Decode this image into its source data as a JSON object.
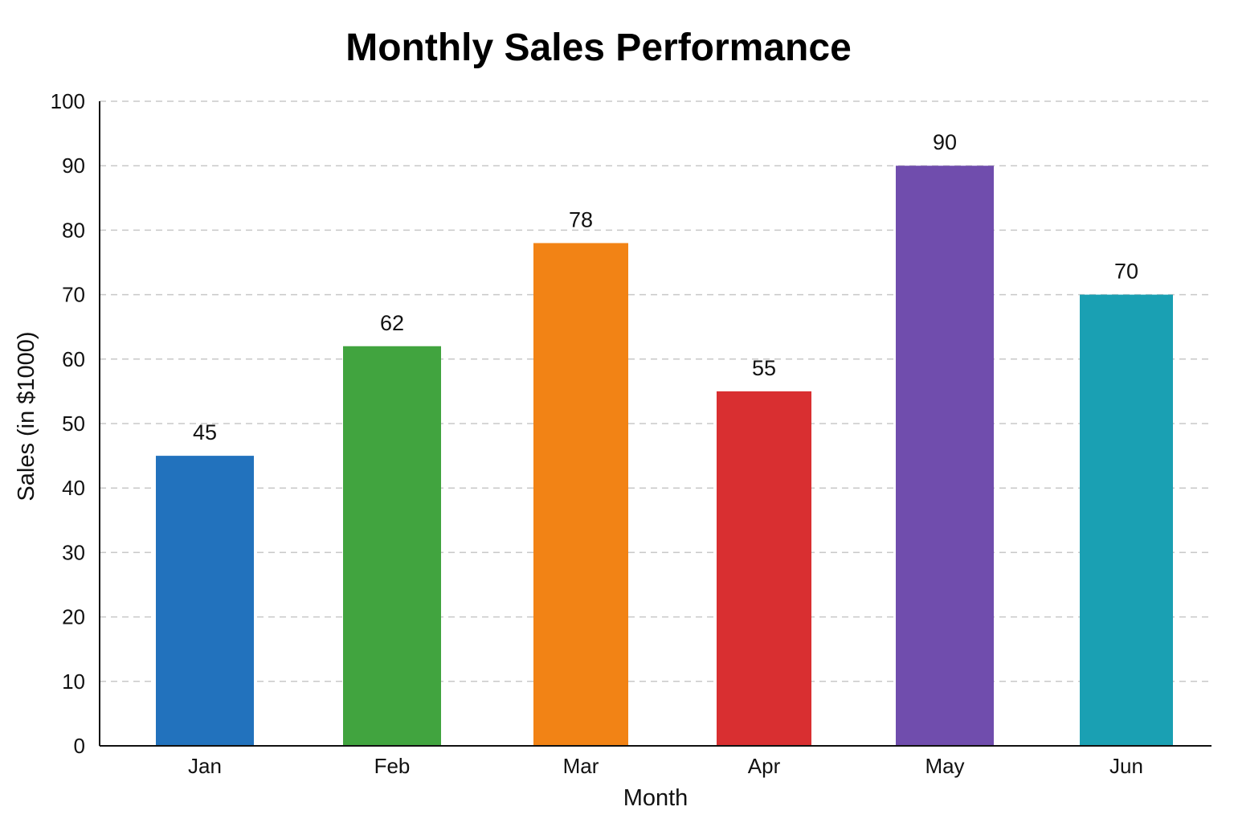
{
  "chart_data": {
    "type": "bar",
    "title": "Monthly Sales Performance",
    "xlabel": "Month",
    "ylabel": "Sales (in $1000)",
    "categories": [
      "Jan",
      "Feb",
      "Mar",
      "Apr",
      "May",
      "Jun"
    ],
    "values": [
      45,
      62,
      78,
      55,
      90,
      70
    ],
    "data_labels": [
      "45",
      "62",
      "78",
      "55",
      "90",
      "70"
    ],
    "colors": [
      "#2272bd",
      "#41a43f",
      "#f28315",
      "#d92f31",
      "#704dad",
      "#1aa0b3"
    ],
    "ylim": [
      0,
      100
    ],
    "yticks": [
      0,
      10,
      20,
      30,
      40,
      50,
      60,
      70,
      80,
      90,
      100
    ],
    "ytick_labels": [
      "0",
      "10",
      "20",
      "30",
      "40",
      "50",
      "60",
      "70",
      "80",
      "90",
      "100"
    ],
    "grid": true,
    "grid_style": "dashed horizontal",
    "legend": "none"
  }
}
